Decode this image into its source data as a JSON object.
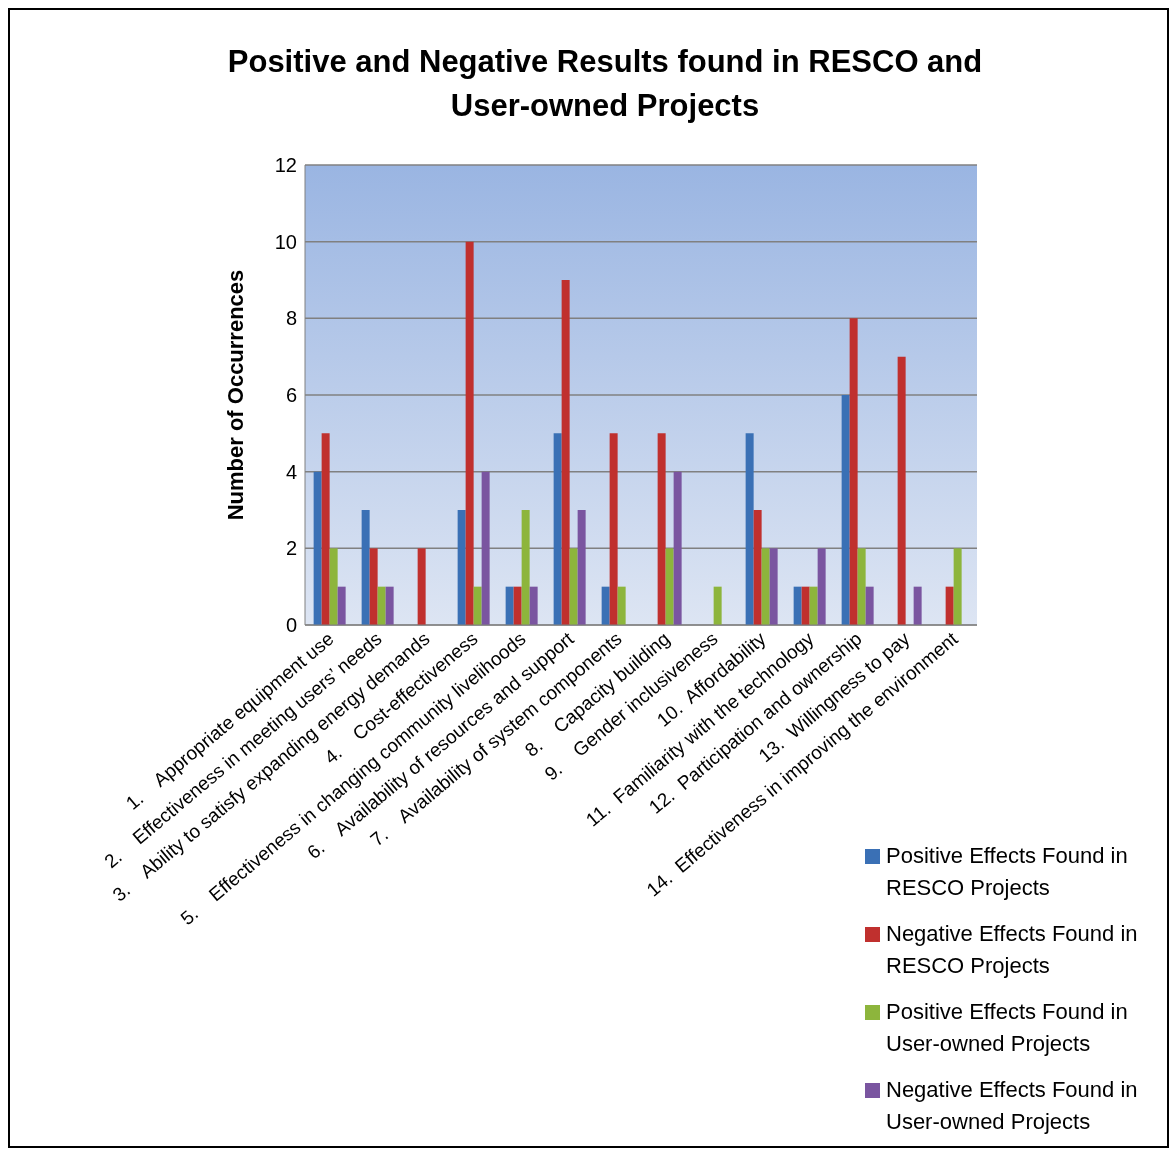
{
  "chart_data": {
    "type": "bar",
    "title": "Positive and Negative Results found in RESCO and User-owned Projects",
    "ylabel": "Number of Occurrences",
    "categories": [
      "1.    Appropriate equipment use",
      "2.    Effectiveness in meeting users’ needs",
      "3.    Ability to satisfy expanding energy demands",
      "4.    Cost-effectiveness",
      "5.    Effectiveness in changing community livelihoods",
      "6.    Availability of resources and support",
      "7.    Availability of system components",
      "8.    Capacity building",
      "9.    Gender inclusiveness",
      "10.  Affordability",
      "11.  Familiarity with the technology",
      "12.  Participation and ownership",
      "13.  Willingness to pay",
      "14.  Effectiveness in improving the environment"
    ],
    "series": [
      {
        "name": "Positive Effects Found in RESCO Projects",
        "color": "#3a70b5",
        "values": [
          4,
          3,
          0,
          3,
          1,
          5,
          1,
          0,
          0,
          5,
          1,
          6,
          0,
          0
        ]
      },
      {
        "name": "Negative Effects Found in RESCO Projects",
        "color": "#c0302e",
        "values": [
          5,
          2,
          2,
          10,
          1,
          9,
          5,
          5,
          0,
          3,
          1,
          8,
          7,
          1
        ]
      },
      {
        "name": "Positive Effects Found in User-owned Projects",
        "color": "#8db53c",
        "values": [
          2,
          1,
          0,
          1,
          3,
          2,
          1,
          2,
          1,
          2,
          1,
          2,
          0,
          2
        ]
      },
      {
        "name": "Negative Effects Found in User-owned Projects",
        "color": "#7a55a0",
        "values": [
          1,
          1,
          0,
          4,
          1,
          3,
          0,
          4,
          0,
          2,
          2,
          1,
          1,
          0
        ]
      }
    ],
    "ylim": [
      0,
      12
    ],
    "yticks": [
      0,
      2,
      4,
      6,
      8,
      10,
      12
    ],
    "grid": "y",
    "legend": "bottom right"
  }
}
